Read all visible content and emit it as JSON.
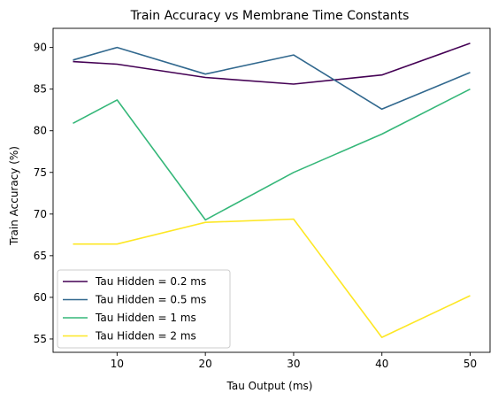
{
  "chart_data": {
    "type": "line",
    "title": "Train Accuracy vs Membrane Time Constants",
    "xlabel": "Tau Output (ms)",
    "ylabel": "Train Accuracy (%)",
    "x": [
      5,
      10,
      20,
      30,
      40,
      50
    ],
    "xticks": [
      10,
      20,
      30,
      40,
      50
    ],
    "xlim": [
      2.75,
      52.25
    ],
    "yticks": [
      55,
      60,
      65,
      70,
      75,
      80,
      85,
      90
    ],
    "ylim": [
      53.4,
      92.3
    ],
    "grid": false,
    "legend_position": "lower-left",
    "series": [
      {
        "name": "Tau Hidden = 0.2 ms",
        "color": "#440154",
        "values": [
          88.3,
          88.0,
          86.4,
          85.6,
          86.7,
          90.5
        ]
      },
      {
        "name": "Tau Hidden = 0.5 ms",
        "color": "#31688e",
        "values": [
          88.5,
          90.0,
          86.8,
          89.1,
          82.6,
          87.0
        ]
      },
      {
        "name": "Tau Hidden = 1 ms",
        "color": "#35b779",
        "values": [
          80.9,
          83.7,
          69.3,
          75.0,
          79.6,
          85.0
        ]
      },
      {
        "name": "Tau Hidden = 2 ms",
        "color": "#fde725",
        "values": [
          66.4,
          66.4,
          69.0,
          69.4,
          55.2,
          60.2
        ]
      }
    ]
  }
}
